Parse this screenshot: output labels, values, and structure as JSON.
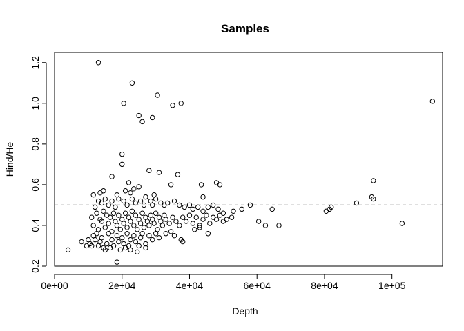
{
  "chart_data": {
    "type": "scatter",
    "title": "Samples",
    "xlabel": "Depth",
    "ylabel": "Hind/He",
    "xlim": [
      0,
      115000
    ],
    "ylim": [
      0.2,
      1.25
    ],
    "xticks": [
      0,
      20000,
      40000,
      60000,
      80000,
      100000
    ],
    "xtick_labels": [
      "0e+00",
      "2e+04",
      "4e+04",
      "6e+04",
      "8e+04",
      "1e+05"
    ],
    "yticks": [
      0.2,
      0.4,
      0.6,
      0.8,
      1.0,
      1.2
    ],
    "ytick_labels": [
      "0.2",
      "0.4",
      "0.6",
      "0.8",
      "1.0",
      "1.2"
    ],
    "grid": false,
    "legend": "none",
    "reference_line": {
      "y": 0.5,
      "style": "dashed"
    },
    "points": [
      [
        13000,
        1.2
      ],
      [
        23000,
        1.1
      ],
      [
        30500,
        1.04
      ],
      [
        20500,
        1.0
      ],
      [
        35000,
        0.99
      ],
      [
        37500,
        1.0
      ],
      [
        112000,
        1.01
      ],
      [
        25000,
        0.94
      ],
      [
        26000,
        0.91
      ],
      [
        29000,
        0.93
      ],
      [
        20000,
        0.75
      ],
      [
        20000,
        0.7
      ],
      [
        28000,
        0.67
      ],
      [
        31000,
        0.66
      ],
      [
        36500,
        0.65
      ],
      [
        17000,
        0.64
      ],
      [
        22000,
        0.61
      ],
      [
        43500,
        0.6
      ],
      [
        48000,
        0.61
      ],
      [
        49000,
        0.6
      ],
      [
        94500,
        0.62
      ],
      [
        11500,
        0.55
      ],
      [
        13500,
        0.56
      ],
      [
        14500,
        0.57
      ],
      [
        18500,
        0.55
      ],
      [
        21000,
        0.57
      ],
      [
        22500,
        0.56
      ],
      [
        23500,
        0.58
      ],
      [
        25000,
        0.59
      ],
      [
        29500,
        0.55
      ],
      [
        34500,
        0.6
      ],
      [
        44000,
        0.54
      ],
      [
        94000,
        0.54
      ],
      [
        94500,
        0.53
      ],
      [
        12000,
        0.49
      ],
      [
        13000,
        0.52
      ],
      [
        14000,
        0.51
      ],
      [
        15000,
        0.53
      ],
      [
        16000,
        0.5
      ],
      [
        17000,
        0.52
      ],
      [
        18000,
        0.49
      ],
      [
        19000,
        0.53
      ],
      [
        20500,
        0.52
      ],
      [
        21500,
        0.5
      ],
      [
        23000,
        0.53
      ],
      [
        24000,
        0.51
      ],
      [
        25500,
        0.52
      ],
      [
        26500,
        0.5
      ],
      [
        27000,
        0.54
      ],
      [
        28500,
        0.52
      ],
      [
        29000,
        0.5
      ],
      [
        30000,
        0.53
      ],
      [
        31500,
        0.51
      ],
      [
        32500,
        0.5
      ],
      [
        33500,
        0.51
      ],
      [
        35500,
        0.52
      ],
      [
        37000,
        0.5
      ],
      [
        38500,
        0.49
      ],
      [
        40000,
        0.5
      ],
      [
        41000,
        0.48
      ],
      [
        42500,
        0.49
      ],
      [
        44000,
        0.47
      ],
      [
        45500,
        0.49
      ],
      [
        47000,
        0.5
      ],
      [
        48500,
        0.48
      ],
      [
        50000,
        0.46
      ],
      [
        53000,
        0.47
      ],
      [
        55500,
        0.48
      ],
      [
        58000,
        0.5
      ],
      [
        64500,
        0.48
      ],
      [
        80500,
        0.47
      ],
      [
        81500,
        0.48
      ],
      [
        82000,
        0.49
      ],
      [
        89500,
        0.51
      ],
      [
        11000,
        0.44
      ],
      [
        11500,
        0.4
      ],
      [
        12500,
        0.46
      ],
      [
        13000,
        0.38
      ],
      [
        13500,
        0.43
      ],
      [
        14000,
        0.42
      ],
      [
        14500,
        0.47
      ],
      [
        15000,
        0.39
      ],
      [
        15500,
        0.45
      ],
      [
        16000,
        0.41
      ],
      [
        16500,
        0.44
      ],
      [
        17000,
        0.37
      ],
      [
        17500,
        0.46
      ],
      [
        18000,
        0.42
      ],
      [
        18500,
        0.4
      ],
      [
        19000,
        0.45
      ],
      [
        19500,
        0.38
      ],
      [
        20000,
        0.43
      ],
      [
        20500,
        0.41
      ],
      [
        21000,
        0.46
      ],
      [
        21500,
        0.39
      ],
      [
        22000,
        0.44
      ],
      [
        22500,
        0.42
      ],
      [
        23000,
        0.47
      ],
      [
        23500,
        0.4
      ],
      [
        24000,
        0.45
      ],
      [
        24500,
        0.38
      ],
      [
        25000,
        0.43
      ],
      [
        25500,
        0.41
      ],
      [
        26000,
        0.46
      ],
      [
        26500,
        0.39
      ],
      [
        27000,
        0.44
      ],
      [
        27500,
        0.42
      ],
      [
        28000,
        0.4
      ],
      [
        28500,
        0.45
      ],
      [
        29000,
        0.43
      ],
      [
        29500,
        0.41
      ],
      [
        30000,
        0.46
      ],
      [
        30500,
        0.38
      ],
      [
        31000,
        0.44
      ],
      [
        31500,
        0.42
      ],
      [
        32000,
        0.4
      ],
      [
        32500,
        0.45
      ],
      [
        33000,
        0.43
      ],
      [
        34000,
        0.41
      ],
      [
        35000,
        0.44
      ],
      [
        36000,
        0.42
      ],
      [
        37000,
        0.4
      ],
      [
        38000,
        0.44
      ],
      [
        39000,
        0.42
      ],
      [
        40000,
        0.45
      ],
      [
        41000,
        0.41
      ],
      [
        42000,
        0.44
      ],
      [
        43000,
        0.4
      ],
      [
        44000,
        0.43
      ],
      [
        45000,
        0.45
      ],
      [
        46000,
        0.41
      ],
      [
        47000,
        0.44
      ],
      [
        48000,
        0.43
      ],
      [
        49000,
        0.45
      ],
      [
        50000,
        0.42
      ],
      [
        51000,
        0.43
      ],
      [
        52500,
        0.44
      ],
      [
        60500,
        0.42
      ],
      [
        62500,
        0.4
      ],
      [
        66500,
        0.4
      ],
      [
        103000,
        0.41
      ],
      [
        11500,
        0.35
      ],
      [
        12000,
        0.33
      ],
      [
        12500,
        0.36
      ],
      [
        13500,
        0.32
      ],
      [
        14000,
        0.34
      ],
      [
        14500,
        0.29
      ],
      [
        15500,
        0.31
      ],
      [
        16000,
        0.36
      ],
      [
        17000,
        0.33
      ],
      [
        17500,
        0.3
      ],
      [
        18500,
        0.35
      ],
      [
        19000,
        0.32
      ],
      [
        20000,
        0.34
      ],
      [
        20500,
        0.31
      ],
      [
        21500,
        0.36
      ],
      [
        22000,
        0.3
      ],
      [
        22500,
        0.33
      ],
      [
        23500,
        0.35
      ],
      [
        24000,
        0.32
      ],
      [
        25000,
        0.3
      ],
      [
        25500,
        0.34
      ],
      [
        26000,
        0.36
      ],
      [
        27000,
        0.31
      ],
      [
        28000,
        0.35
      ],
      [
        29000,
        0.33
      ],
      [
        30000,
        0.36
      ],
      [
        31000,
        0.34
      ],
      [
        33000,
        0.36
      ],
      [
        34500,
        0.37
      ],
      [
        35500,
        0.35
      ],
      [
        37500,
        0.33
      ],
      [
        38000,
        0.32
      ],
      [
        41500,
        0.38
      ],
      [
        43000,
        0.39
      ],
      [
        45500,
        0.36
      ],
      [
        11000,
        0.3
      ],
      [
        13000,
        0.3
      ],
      [
        15000,
        0.28
      ],
      [
        16500,
        0.29
      ],
      [
        19500,
        0.28
      ],
      [
        21000,
        0.29
      ],
      [
        22500,
        0.28
      ],
      [
        24500,
        0.27
      ],
      [
        27000,
        0.29
      ],
      [
        9500,
        0.3
      ],
      [
        10500,
        0.31
      ],
      [
        8000,
        0.32
      ],
      [
        10000,
        0.33
      ],
      [
        4000,
        0.28
      ],
      [
        18500,
        0.22
      ]
    ]
  }
}
